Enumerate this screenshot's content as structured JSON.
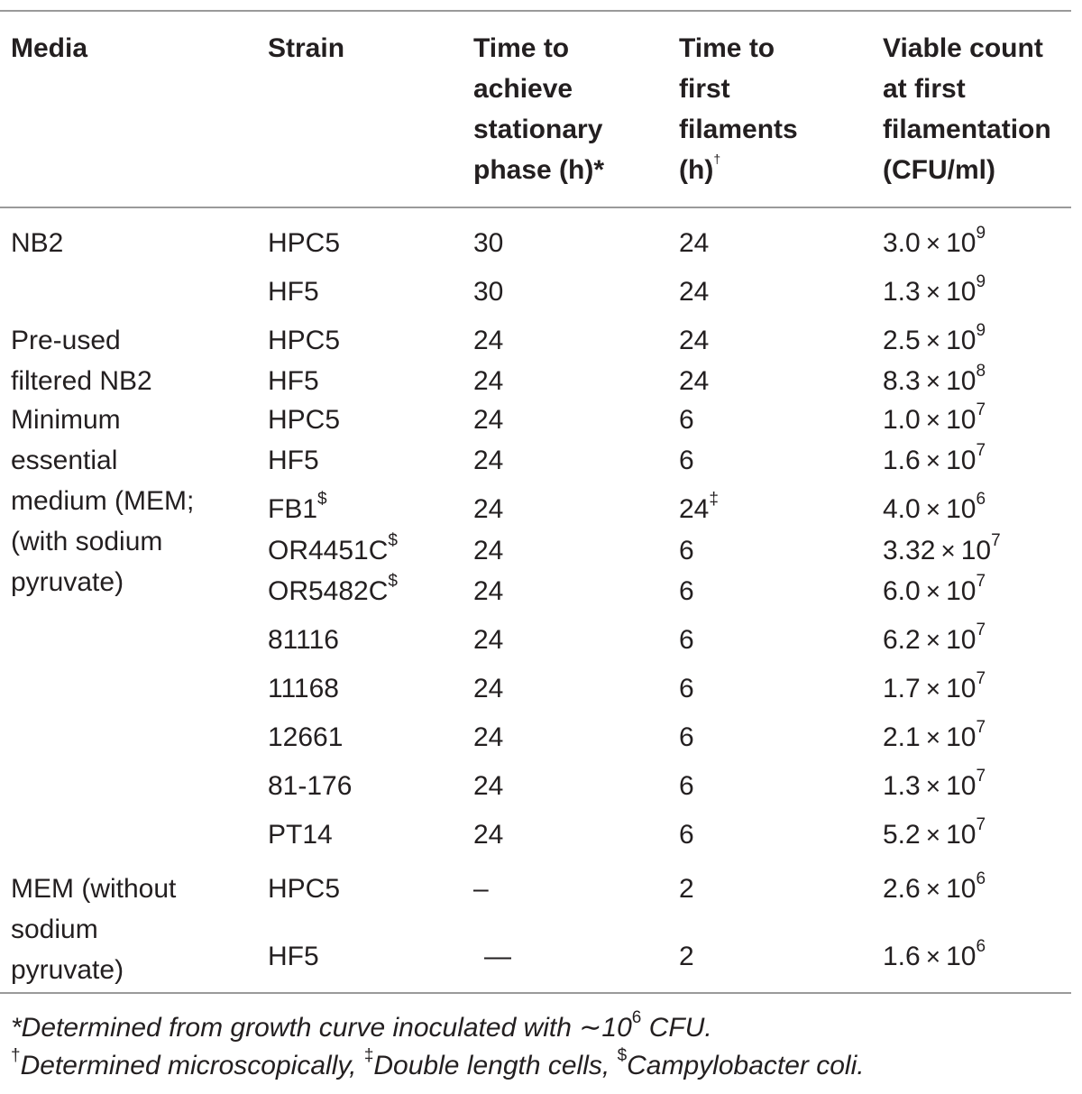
{
  "headers": [
    [
      "Media"
    ],
    [
      "Strain"
    ],
    [
      "Time to",
      "achieve",
      "stationary",
      "phase (h)*"
    ],
    [
      "Time to",
      "first",
      "filaments",
      "(h)"
    ],
    [
      "Viable count",
      "at first",
      "filamentation",
      "(CFU/ml)"
    ]
  ],
  "header_dagger": "†",
  "media": [
    [
      "NB2"
    ],
    [
      "Pre-used",
      "filtered NB2"
    ],
    [
      "Minimum",
      "essential",
      "medium (MEM;",
      "(with sodium",
      "pyruvate)"
    ],
    [
      "MEM (without",
      "sodium",
      "pyruvate)"
    ]
  ],
  "rows": [
    {
      "strain": "HPC5",
      "strain_sup": "",
      "stationary": "30",
      "filaments": "24",
      "filaments_sup": "",
      "count_base": "3.0",
      "count_exp": "9"
    },
    {
      "strain": "HF5",
      "strain_sup": "",
      "stationary": "30",
      "filaments": "24",
      "filaments_sup": "",
      "count_base": "1.3",
      "count_exp": "9"
    },
    {
      "strain": "HPC5",
      "strain_sup": "",
      "stationary": "24",
      "filaments": "24",
      "filaments_sup": "",
      "count_base": "2.5",
      "count_exp": "9"
    },
    {
      "strain": "HF5",
      "strain_sup": "",
      "stationary": "24",
      "filaments": "24",
      "filaments_sup": "",
      "count_base": "8.3",
      "count_exp": "8"
    },
    {
      "strain": "HPC5",
      "strain_sup": "",
      "stationary": "24",
      "filaments": "6",
      "filaments_sup": "",
      "count_base": "1.0",
      "count_exp": "7"
    },
    {
      "strain": "HF5",
      "strain_sup": "",
      "stationary": "24",
      "filaments": "6",
      "filaments_sup": "",
      "count_base": "1.6",
      "count_exp": "7"
    },
    {
      "strain": "FB1",
      "strain_sup": "$",
      "stationary": "24",
      "filaments": "24",
      "filaments_sup": "‡",
      "count_base": "4.0",
      "count_exp": "6"
    },
    {
      "strain": "OR4451C",
      "strain_sup": "$",
      "stationary": "24",
      "filaments": "6",
      "filaments_sup": "",
      "count_base": "3.32",
      "count_exp": "7"
    },
    {
      "strain": "OR5482C",
      "strain_sup": "$",
      "stationary": "24",
      "filaments": "6",
      "filaments_sup": "",
      "count_base": "6.0",
      "count_exp": "7"
    },
    {
      "strain": "81116",
      "strain_sup": "",
      "stationary": "24",
      "filaments": "6",
      "filaments_sup": "",
      "count_base": "6.2",
      "count_exp": "7"
    },
    {
      "strain": "11168",
      "strain_sup": "",
      "stationary": "24",
      "filaments": "6",
      "filaments_sup": "",
      "count_base": "1.7",
      "count_exp": "7"
    },
    {
      "strain": "12661",
      "strain_sup": "",
      "stationary": "24",
      "filaments": "6",
      "filaments_sup": "",
      "count_base": "2.1",
      "count_exp": "7"
    },
    {
      "strain": "81-176",
      "strain_sup": "",
      "stationary": "24",
      "filaments": "6",
      "filaments_sup": "",
      "count_base": "1.3",
      "count_exp": "7"
    },
    {
      "strain": "PT14",
      "strain_sup": "",
      "stationary": "24",
      "filaments": "6",
      "filaments_sup": "",
      "count_base": "5.2",
      "count_exp": "7"
    },
    {
      "strain": "HPC5",
      "strain_sup": "",
      "stationary": "–",
      "filaments": "2",
      "filaments_sup": "",
      "count_base": "2.6",
      "count_exp": "6"
    },
    {
      "strain": "HF5",
      "strain_sup": "",
      "stationary": "—",
      "filaments": "2",
      "filaments_sup": "",
      "count_base": "1.6",
      "count_exp": "6"
    }
  ],
  "times_symbol": "×",
  "count_base10": "10",
  "footnotes": {
    "line1_pre": "*Determined from growth curve inoculated with ∼10",
    "line1_sup": "6",
    "line1_post": " CFU.",
    "line2_sup1": "†",
    "line2_a": "Determined microscopically, ",
    "line2_sup2": "‡",
    "line2_b": "Double length cells, ",
    "line2_sup3": "$",
    "line2_c": "Campylobacter coli."
  }
}
